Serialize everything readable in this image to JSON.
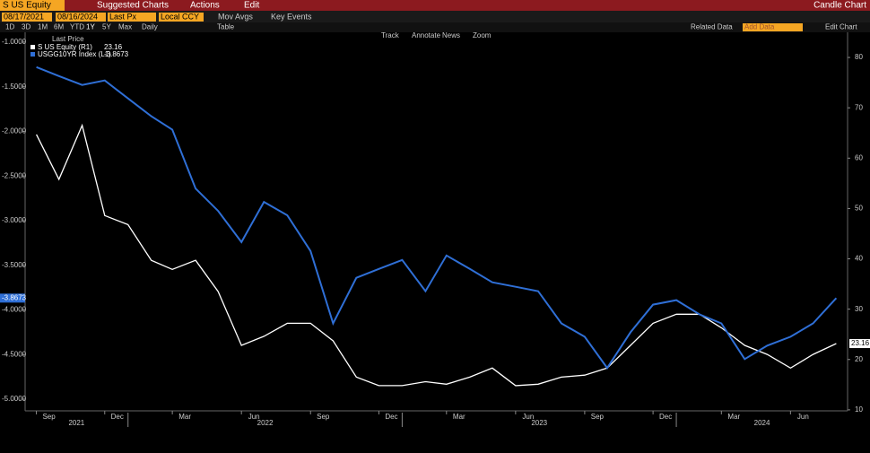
{
  "toolbar": {
    "ticker": "S US Equity",
    "suggested": "Suggested Charts",
    "actions": "Actions",
    "edit": "Edit",
    "chart_kind": "Candle Chart",
    "field": "Last Px",
    "currency": "Local CCY",
    "mov_avgs": "Mov Avgs",
    "key_events": "Key Events",
    "periods": [
      "1D",
      "3D",
      "1M",
      "6M",
      "YTD",
      "1Y",
      "5Y",
      "Max"
    ],
    "frequency": "Daily",
    "table": "Table",
    "related": "Related Data",
    "add_data": "Add Data",
    "edit_chart": "Edit Chart",
    "tools": [
      "Track",
      "Annotate",
      "News",
      "Zoom"
    ],
    "legend_title": "Last Price"
  },
  "chart_data": {
    "type": "line",
    "x": [
      "2021-09",
      "2021-10",
      "2021-11",
      "2021-12",
      "2022-01",
      "2022-02",
      "2022-03",
      "2022-04",
      "2022-05",
      "2022-06",
      "2022-07",
      "2022-08",
      "2022-09",
      "2022-10",
      "2022-11",
      "2022-12",
      "2023-01",
      "2023-02",
      "2023-03",
      "2023-04",
      "2023-05",
      "2023-06",
      "2023-07",
      "2023-08",
      "2023-09",
      "2023-10",
      "2023-11",
      "2023-12",
      "2024-01",
      "2024-02",
      "2024-03",
      "2024-04",
      "2024-05",
      "2024-06",
      "2024-07",
      "2024-08"
    ],
    "series": [
      {
        "name": "S US Equity (R1)",
        "color": "#ffffff",
        "axis": "y2",
        "values": [
          64.7,
          55.8,
          66.5,
          48.6,
          46.8,
          39.7,
          37.9,
          39.7,
          33.5,
          22.8,
          24.6,
          27.2,
          27.2,
          23.7,
          16.5,
          14.8,
          14.8,
          15.6,
          15.1,
          16.5,
          18.3,
          14.8,
          15.1,
          16.5,
          16.9,
          18.3,
          22.8,
          27.2,
          29.0,
          29.0,
          26.3,
          22.8,
          21.0,
          18.3,
          21.0,
          23.16
        ]
      },
      {
        "name": "USGG10YR Index (L1)",
        "color": "#2f6fd6",
        "axis": "y",
        "values": [
          -1.28,
          -1.38,
          -1.48,
          -1.43,
          -1.63,
          -1.83,
          -1.98,
          -2.64,
          -2.89,
          -3.24,
          -2.79,
          -2.94,
          -3.34,
          -4.15,
          -3.64,
          -3.54,
          -3.44,
          -3.79,
          -3.39,
          -3.54,
          -3.69,
          -3.74,
          -3.79,
          -4.15,
          -4.3,
          -4.65,
          -4.25,
          -3.94,
          -3.89,
          -4.05,
          -4.15,
          -4.55,
          -4.4,
          -4.3,
          -4.15,
          -3.8673
        ]
      }
    ],
    "xlim": [
      "08/17/2021",
      "08/16/2024"
    ],
    "xticks": [
      {
        "value": "2021-09",
        "label": "Sep"
      },
      {
        "value": "2021-12",
        "label": "Dec"
      },
      {
        "value": "2022-03",
        "label": "Mar"
      },
      {
        "value": "2022-06",
        "label": "Jun"
      },
      {
        "value": "2022-09",
        "label": "Sep"
      },
      {
        "value": "2022-12",
        "label": "Dec"
      },
      {
        "value": "2023-03",
        "label": "Mar"
      },
      {
        "value": "2023-06",
        "label": "Jun"
      },
      {
        "value": "2023-09",
        "label": "Sep"
      },
      {
        "value": "2023-12",
        "label": "Dec"
      },
      {
        "value": "2024-03",
        "label": "Mar"
      },
      {
        "value": "2024-06",
        "label": "Jun"
      }
    ],
    "years": [
      2021,
      2022,
      2023,
      2024
    ],
    "ylim": [
      -5.13,
      -0.89
    ],
    "yticks": [
      {
        "value": -1,
        "label": "-1.0000"
      },
      {
        "value": -1.5,
        "label": "-1.5000"
      },
      {
        "value": -2,
        "label": "-2.0000"
      },
      {
        "value": -2.5,
        "label": "-2.5000"
      },
      {
        "value": -3,
        "label": "-3.0000"
      },
      {
        "value": -3.5,
        "label": "-3.5000"
      },
      {
        "value": -4,
        "label": "-4.0000"
      },
      {
        "value": -4.5,
        "label": "-4.5000"
      },
      {
        "value": -5,
        "label": "-5.0000"
      }
    ],
    "y2lim": [
      9.8,
      85
    ],
    "y2ticks": [
      10,
      20,
      30,
      40,
      50,
      60,
      70,
      80
    ],
    "grid": false
  }
}
